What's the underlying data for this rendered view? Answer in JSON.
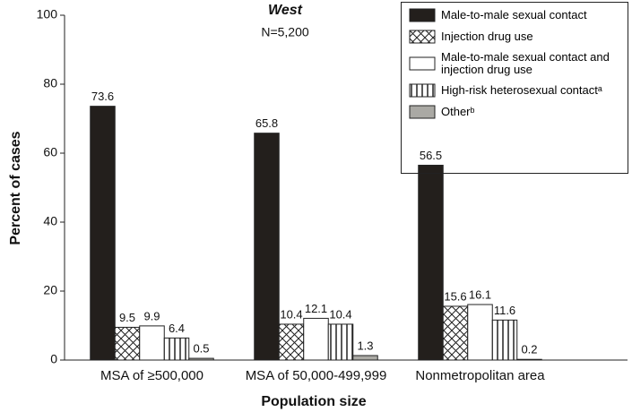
{
  "chart_data": {
    "type": "bar",
    "title": "West",
    "subtitle": "N=5,200",
    "x_label": "Population size",
    "y_label": "Percent of cases",
    "categories": [
      "MSA of ≥500,000",
      "MSA of 50,000-499,999",
      "Nonmetropolitan area"
    ],
    "series": [
      {
        "name": "Male-to-male sexual contact",
        "color": "#231f1c",
        "pattern": "solid",
        "values": [
          73.6,
          65.8,
          56.5
        ]
      },
      {
        "name": "Injection drug use",
        "color": "#ffffff",
        "pattern": "crosshatch",
        "values": [
          9.5,
          10.4,
          15.6
        ]
      },
      {
        "name": "Male-to-male sexual contact and injection drug use",
        "color": "#ffffff",
        "pattern": "solid",
        "values": [
          9.9,
          12.1,
          16.1
        ]
      },
      {
        "name": "High-risk heterosexual contactᵃ",
        "color": "#ffffff",
        "pattern": "vertical",
        "values": [
          6.4,
          10.4,
          11.6
        ]
      },
      {
        "name": "Otherᵇ",
        "color": "#aaa9a4",
        "pattern": "solid",
        "values": [
          0.5,
          1.3,
          0.2
        ]
      }
    ],
    "ylim": [
      0,
      100
    ],
    "yticks": [
      0,
      20,
      40,
      60,
      80,
      100
    ],
    "grid": false,
    "legend": "top-right"
  }
}
